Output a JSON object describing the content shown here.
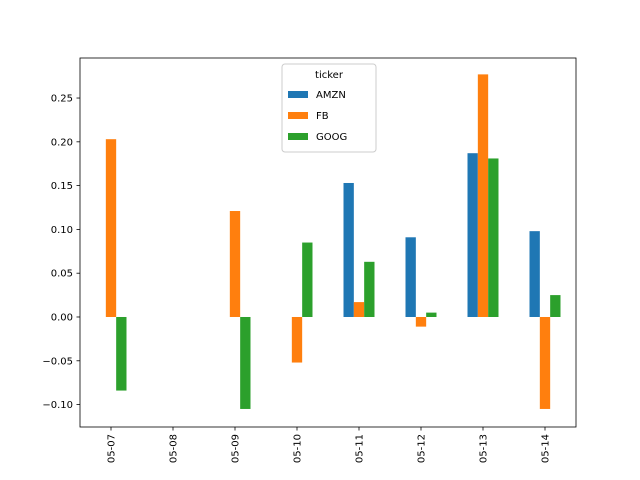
{
  "chart_data": {
    "type": "bar",
    "title": "",
    "xlabel": "",
    "ylabel": "",
    "categories": [
      "05-07",
      "05-08",
      "05-09",
      "05-10",
      "05-11",
      "05-12",
      "05-13",
      "05-14"
    ],
    "series": [
      {
        "name": "AMZN",
        "color": "#1f77b4",
        "values": [
          null,
          null,
          null,
          null,
          0.153,
          0.091,
          0.187,
          0.098
        ]
      },
      {
        "name": "FB",
        "color": "#ff7f0e",
        "values": [
          0.203,
          null,
          0.121,
          -0.052,
          0.017,
          -0.011,
          0.277,
          -0.105
        ]
      },
      {
        "name": "GOOG",
        "color": "#2ca02c",
        "values": [
          -0.084,
          null,
          -0.105,
          0.085,
          0.063,
          0.005,
          0.181,
          0.025
        ]
      }
    ],
    "ylim": [
      -0.1256,
      0.2957
    ],
    "yticks": [
      -0.1,
      -0.05,
      0.0,
      0.05,
      0.1,
      0.15,
      0.2,
      0.25
    ],
    "ytick_labels": [
      "−0.10",
      "−0.05",
      "0.00",
      "0.05",
      "0.10",
      "0.15",
      "0.20",
      "0.25"
    ],
    "legend": {
      "title": "ticker",
      "placement": "upper-center"
    },
    "grid": false
  }
}
